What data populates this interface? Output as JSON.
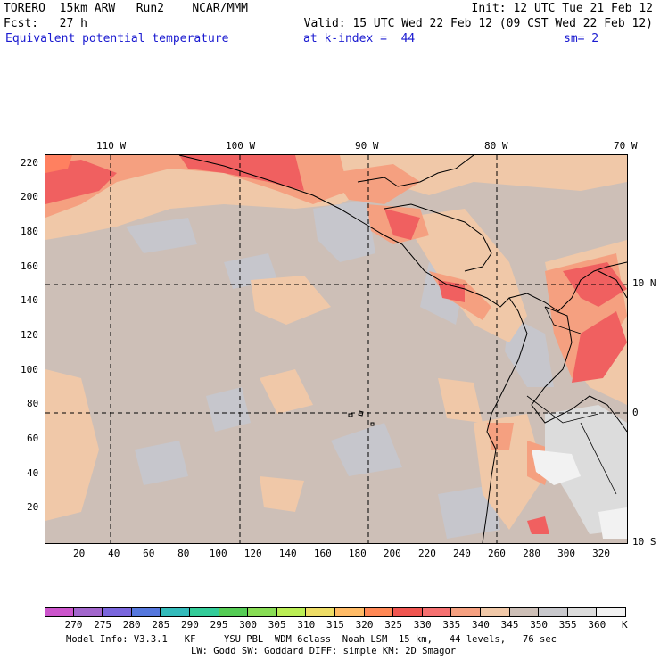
{
  "header": {
    "line1_left": "TORERO  15km ARW   Run2    NCAR/MMM",
    "line1_right": "Init: 12 UTC Tue 21 Feb 12",
    "line2_left": "Fcst:   27 h",
    "line2_right": "Valid: 15 UTC Wed 22 Feb 12 (09 CST Wed 22 Feb 12)",
    "field_name": "Equivalent potential temperature",
    "level": "at k-index =  44",
    "smoothing": "sm= 2"
  },
  "map": {
    "top_lon_labels": [
      "110 W",
      "100 W",
      "90 W",
      "80 W",
      "70 W"
    ],
    "right_lat_labels": [
      "10 N",
      "0",
      "10 S"
    ],
    "left_grid_labels": [
      "220",
      "200",
      "180",
      "160",
      "140",
      "120",
      "100",
      "80",
      "60",
      "40",
      "20"
    ],
    "bottom_grid_labels": [
      "20",
      "40",
      "60",
      "80",
      "100",
      "120",
      "140",
      "160",
      "180",
      "200",
      "220",
      "240",
      "260",
      "280",
      "300",
      "320"
    ],
    "grid_x_range": [
      0,
      334
    ],
    "grid_y_range": [
      0,
      225
    ],
    "background_color": "#cdbfb7"
  },
  "colorbar": {
    "labels": [
      "270",
      "275",
      "280",
      "285",
      "290",
      "295",
      "300",
      "305",
      "310",
      "315",
      "320",
      "325",
      "330",
      "335",
      "340",
      "345",
      "350",
      "355",
      "360"
    ],
    "unit": "K",
    "colors": [
      "#cc55cc",
      "#a266cc",
      "#7a66dd",
      "#5577dd",
      "#33bbbb",
      "#33cc99",
      "#55cc55",
      "#88dd55",
      "#bbee55",
      "#eedd66",
      "#ffbb66",
      "#ff8855",
      "#f05550",
      "#f57070",
      "#f5a080",
      "#f0c8a8",
      "#cdbfb7",
      "#c8c8cc",
      "#dcdcdc",
      "#f2f2f2"
    ]
  },
  "footer": {
    "line1": "Model Info: V3.3.1   KF     YSU PBL  WDM 6class  Noah LSM  15 km,   44 levels,   76 sec",
    "line2": "LW: Godd SW: Goddard DIFF: simple KM: 2D Smagor"
  }
}
